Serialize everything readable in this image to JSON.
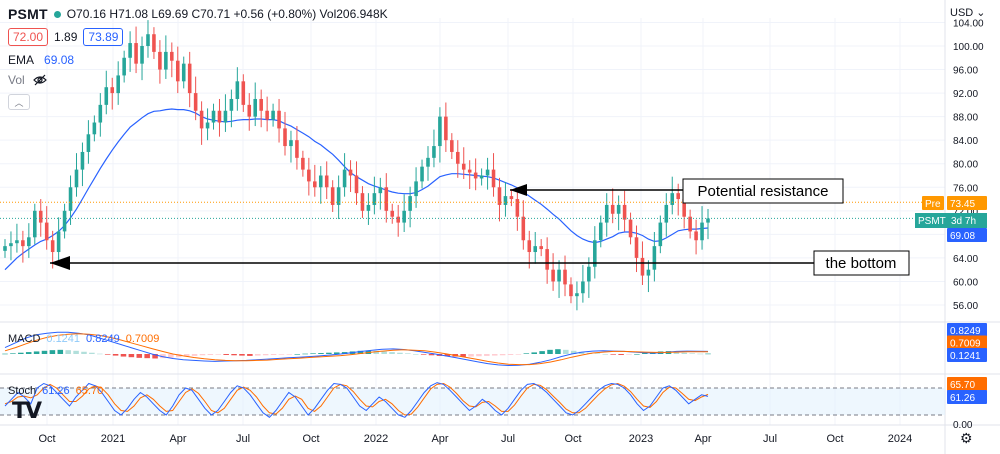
{
  "header": {
    "symbol": "PSMT",
    "ohlc_text": "O70.16 H71.08 L69.69 C70.71 +0.56 (+0.80%) Vol206.948K",
    "bid": "72.00",
    "spread": "1.89",
    "ask": "73.89",
    "ema_label": "EMA",
    "ema_value": "69.08",
    "vol_label": "Vol"
  },
  "currency": "USD",
  "indicators": {
    "macd_label": "MACD",
    "macd_hist": "0.1241",
    "macd_line": "0.8249",
    "macd_signal": "0.7009",
    "stoch_label": "Stoch",
    "stoch_k": "61.26",
    "stoch_d": "65.70"
  },
  "annotations": {
    "resistance": "Potential resistance",
    "bottom": "the bottom"
  },
  "price_badges": {
    "pre_label": "Pre",
    "pre_value": "73.45",
    "symbol_label": "PSMT",
    "countdown": "3d 7h",
    "ema_badge": "69.08",
    "macd_badges": [
      "0.8249",
      "0.7009",
      "0.1241"
    ],
    "stoch_badges": [
      "65.70",
      "61.26"
    ]
  },
  "colors": {
    "up": "#26a69a",
    "down": "#ef5350",
    "ema": "#2962ff",
    "macd": "#2962ff",
    "signal": "#ff6d00",
    "stoch_k": "#2962ff",
    "stoch_d": "#ff6d00",
    "pre": "#ff9800"
  },
  "chart_data": {
    "type": "candlestick",
    "x_tick_labels": [
      "Oct",
      "2021",
      "Apr",
      "Jul",
      "Oct",
      "2022",
      "Apr",
      "Jul",
      "Oct",
      "2023",
      "Apr",
      "Jul",
      "Oct",
      "2024"
    ],
    "y_tick_labels": [
      "104.00",
      "100.00",
      "96.00",
      "92.00",
      "88.00",
      "84.00",
      "80.00",
      "76.00",
      "72.00",
      "68.00",
      "64.00",
      "60.00",
      "56.00"
    ],
    "ylim": [
      55,
      106
    ],
    "closes": [
      66.0,
      66.5,
      67.0,
      66.0,
      67.5,
      72.0,
      70.0,
      67.0,
      65.0,
      68.5,
      72.0,
      76.0,
      79.0,
      82.0,
      85.0,
      87.0,
      90.0,
      93.0,
      92.0,
      95.0,
      98.0,
      100.5,
      97.0,
      100.0,
      102.0,
      99.0,
      96.0,
      99.0,
      97.5,
      94.0,
      97.0,
      92.0,
      89.0,
      86.0,
      87.0,
      89.0,
      87.0,
      89.0,
      91.0,
      94.0,
      90.0,
      88.0,
      91.0,
      89.0,
      87.5,
      89.0,
      86.0,
      83.0,
      84.0,
      81.0,
      79.0,
      77.0,
      76.0,
      78.0,
      76.0,
      73.0,
      76.0,
      79.0,
      78.0,
      75.0,
      72.0,
      73.0,
      75.0,
      76.0,
      72.0,
      71.0,
      70.0,
      72.0,
      74.5,
      77.0,
      79.5,
      81.0,
      83.0,
      88.0,
      84.0,
      82.0,
      80.0,
      79.0,
      78.5,
      77.5,
      78.0,
      79.0,
      76.0,
      73.0,
      74.5,
      74.0,
      71.0,
      67.0,
      65.0,
      66.0,
      65.5,
      62.0,
      60.0,
      62.0,
      59.5,
      57.5,
      58.0,
      60.0,
      62.5,
      67.0,
      70.0,
      73.0,
      71.5,
      73.0,
      70.5,
      67.5,
      64.0,
      61.0,
      62.0,
      66.0,
      70.0,
      73.0,
      75.0,
      74.0,
      71.0,
      68.5,
      67.0,
      70.0,
      70.7
    ],
    "ema": [
      62.0,
      63.0,
      64.0,
      64.8,
      65.5,
      66.2,
      66.8,
      67.2,
      67.8,
      68.5,
      69.5,
      70.8,
      72.3,
      74.0,
      75.8,
      77.5,
      79.2,
      80.8,
      82.3,
      83.7,
      85.0,
      86.2,
      87.0,
      87.8,
      88.5,
      88.9,
      89.0,
      89.2,
      89.3,
      89.2,
      89.2,
      89.0,
      88.6,
      88.0,
      87.6,
      87.4,
      87.2,
      87.1,
      87.2,
      87.4,
      87.5,
      87.5,
      87.6,
      87.6,
      87.5,
      87.5,
      87.3,
      86.8,
      86.4,
      85.8,
      85.2,
      84.6,
      83.8,
      83.2,
      82.4,
      81.6,
      80.6,
      79.5,
      78.5,
      77.8,
      77.2,
      76.6,
      76.2,
      75.9,
      75.5,
      75.2,
      75.0,
      74.9,
      74.9,
      75.1,
      75.6,
      76.2,
      77.0,
      77.8,
      78.1,
      78.3,
      78.3,
      78.2,
      78.1,
      78.0,
      77.9,
      77.8,
      77.6,
      77.2,
      76.8,
      76.4,
      75.9,
      75.2,
      74.5,
      73.8,
      73.1,
      72.3,
      71.4,
      70.6,
      69.6,
      68.6,
      67.8,
      67.2,
      66.8,
      66.6,
      66.8,
      67.2,
      67.6,
      68.2,
      68.4,
      68.4,
      68.2,
      67.8,
      67.2,
      66.8,
      66.9,
      67.4,
      68.0,
      68.6,
      68.8,
      68.9,
      68.9,
      69.0,
      69.08
    ],
    "macd_hist": [
      0.1,
      0.2,
      0.4,
      0.6,
      0.8,
      1.0,
      1.2,
      1.3,
      1.2,
      1.0,
      0.7,
      0.4,
      0.1,
      -0.2,
      -0.5,
      -0.8,
      -1.0,
      -1.2,
      -1.3,
      -1.4,
      -1.3,
      -1.2,
      -1.0,
      -0.8,
      -0.6,
      -0.4,
      -0.3,
      -0.2,
      -0.3,
      -0.4,
      -0.5,
      -0.6,
      -0.5,
      -0.4,
      -0.3,
      -0.2,
      -0.1,
      0.0,
      0.1,
      0.2,
      0.3,
      0.4,
      0.5,
      0.6,
      0.8,
      1.0,
      1.1,
      1.0,
      0.8,
      0.6,
      0.4,
      0.2,
      0.0,
      -0.2,
      -0.4,
      -0.6,
      -0.7,
      -0.8,
      -0.9,
      -0.8,
      -0.7,
      -0.6,
      -0.5,
      -0.4,
      -0.3,
      -0.2,
      0.2,
      0.5,
      0.9,
      1.3,
      1.5,
      1.3,
      1.0,
      0.7,
      0.4,
      0.2,
      0.0,
      -0.2,
      -0.3,
      -0.2,
      0.0,
      0.3,
      0.6,
      0.8,
      0.9,
      0.7,
      0.4,
      0.2,
      0.1,
      0.12
    ],
    "macd_line": [
      2.0,
      3.5,
      5.0,
      6.0,
      6.5,
      6.8,
      6.8,
      6.5,
      6.0,
      5.0,
      4.0,
      3.0,
      2.0,
      1.0,
      0.0,
      -0.8,
      -1.4,
      -1.8,
      -2.0,
      -2.2,
      -2.3,
      -2.2,
      -2.1,
      -2.0,
      -1.8,
      -1.6,
      -1.4,
      -1.2,
      -1.0,
      -0.8,
      -0.6,
      -0.3,
      0.0,
      0.4,
      0.8,
      1.2,
      1.5,
      1.6,
      1.4,
      1.0,
      0.5,
      0.0,
      -0.6,
      -1.2,
      -1.8,
      -2.4,
      -3.0,
      -3.4,
      -3.6,
      -3.5,
      -3.2,
      -2.6,
      -1.8,
      -0.8,
      0.0,
      0.6,
      0.9,
      1.0,
      0.9,
      0.8,
      0.6,
      0.4,
      0.3,
      0.5,
      0.8,
      0.9,
      0.85,
      0.82
    ],
    "macd_signal": [
      1.0,
      2.0,
      3.2,
      4.3,
      5.2,
      5.8,
      6.2,
      6.3,
      6.2,
      5.8,
      5.2,
      4.4,
      3.5,
      2.6,
      1.7,
      0.8,
      0.0,
      -0.6,
      -1.1,
      -1.5,
      -1.8,
      -2.0,
      -2.1,
      -2.1,
      -2.0,
      -1.9,
      -1.7,
      -1.5,
      -1.3,
      -1.1,
      -0.9,
      -0.7,
      -0.5,
      -0.2,
      0.2,
      0.6,
      0.9,
      1.2,
      1.3,
      1.2,
      1.0,
      0.6,
      0.1,
      -0.5,
      -1.1,
      -1.7,
      -2.3,
      -2.8,
      -3.2,
      -3.3,
      -3.3,
      -3.0,
      -2.5,
      -1.8,
      -1.0,
      -0.3,
      0.3,
      0.6,
      0.8,
      0.8,
      0.7,
      0.6,
      0.5,
      0.5,
      0.6,
      0.7,
      0.7,
      0.7
    ],
    "stoch_k": [
      40,
      55,
      70,
      60,
      45,
      80,
      90,
      85,
      70,
      55,
      40,
      60,
      75,
      90,
      85,
      70,
      50,
      30,
      20,
      35,
      55,
      70,
      60,
      45,
      30,
      20,
      40,
      65,
      80,
      75,
      55,
      35,
      20,
      30,
      50,
      70,
      85,
      80,
      65,
      45,
      25,
      15,
      30,
      50,
      70,
      60,
      40,
      20,
      35,
      55,
      75,
      90,
      88,
      80,
      60,
      40,
      30,
      45,
      60,
      50,
      35,
      20,
      15,
      30,
      50,
      70,
      85,
      92,
      88,
      75,
      60,
      45,
      30,
      40,
      55,
      45,
      30,
      20,
      35,
      55,
      75,
      88,
      90,
      82,
      70,
      55,
      40,
      25,
      20,
      30,
      45,
      60,
      75,
      85,
      90,
      88,
      80,
      65,
      45,
      30,
      40,
      60,
      80,
      85,
      75,
      60,
      45,
      55,
      65,
      61.26
    ],
    "stoch_d": [
      45,
      50,
      60,
      62,
      58,
      65,
      80,
      88,
      80,
      65,
      50,
      50,
      62,
      78,
      85,
      80,
      65,
      45,
      30,
      28,
      40,
      58,
      65,
      55,
      40,
      28,
      30,
      50,
      70,
      78,
      68,
      50,
      30,
      25,
      35,
      55,
      75,
      82,
      75,
      60,
      40,
      25,
      22,
      35,
      55,
      62,
      55,
      35,
      28,
      40,
      60,
      80,
      88,
      85,
      72,
      55,
      40,
      38,
      50,
      55,
      45,
      30,
      20,
      22,
      38,
      58,
      78,
      88,
      90,
      82,
      68,
      52,
      40,
      38,
      48,
      50,
      40,
      28,
      28,
      42,
      62,
      80,
      88,
      86,
      76,
      62,
      48,
      33,
      25,
      25,
      35,
      50,
      65,
      78,
      87,
      90,
      84,
      72,
      55,
      40,
      37,
      50,
      70,
      82,
      80,
      68,
      55,
      52,
      60,
      65.7
    ],
    "macd_ticks": [],
    "stoch_tick_labels": [
      "0.00"
    ],
    "resistance_level": 75.6,
    "bottom_level": 63.6
  }
}
